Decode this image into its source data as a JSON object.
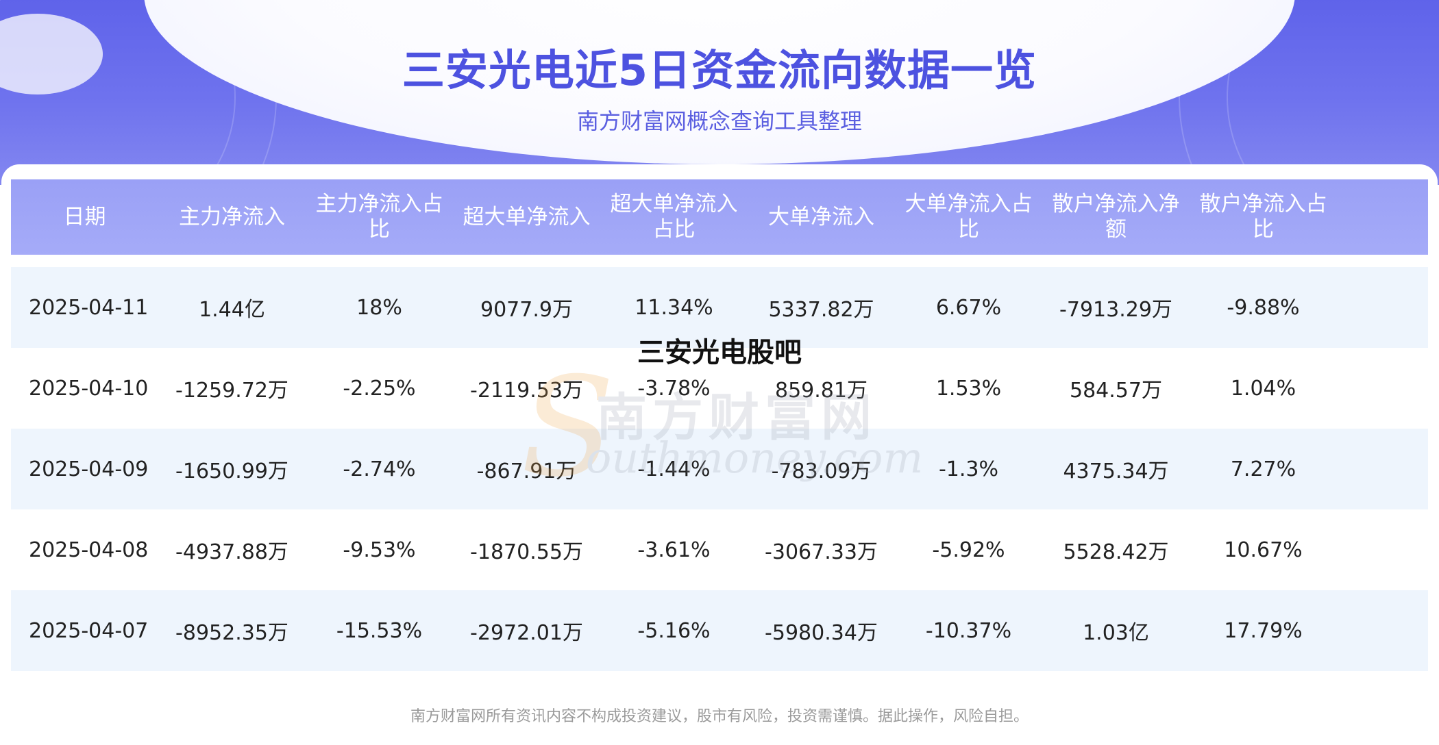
{
  "header": {
    "title": "三安光电近5日资金流向数据一览",
    "subtitle": "南方财富网概念查询工具整理"
  },
  "overlay_title": "三安光电股吧",
  "watermark": {
    "cn": "南方财富网",
    "en": "outhmoney.com"
  },
  "table": {
    "columns": [
      "日期",
      "主力净流入",
      "主力净流入占比",
      "超大单净流入",
      "超大单净流入占比",
      "大单净流入",
      "大单净流入占比",
      "散户净流入净额",
      "散户净流入占比"
    ],
    "rows": [
      [
        "2025-04-11",
        "1.44亿",
        "18%",
        "9077.9万",
        "11.34%",
        "5337.82万",
        "6.67%",
        "-7913.29万",
        "-9.88%"
      ],
      [
        "2025-04-10",
        "-1259.72万",
        "-2.25%",
        "-2119.53万",
        "-3.78%",
        "859.81万",
        "1.53%",
        "584.57万",
        "1.04%"
      ],
      [
        "2025-04-09",
        "-1650.99万",
        "-2.74%",
        "-867.91万",
        "-1.44%",
        "-783.09万",
        "-1.3%",
        "4375.34万",
        "7.27%"
      ],
      [
        "2025-04-08",
        "-4937.88万",
        "-9.53%",
        "-1870.55万",
        "-3.61%",
        "-3067.33万",
        "-5.92%",
        "5528.42万",
        "10.67%"
      ],
      [
        "2025-04-07",
        "-8952.35万",
        "-15.53%",
        "-2972.01万",
        "-5.16%",
        "-5980.34万",
        "-10.37%",
        "1.03亿",
        "17.79%"
      ]
    ]
  },
  "footer": "南方财富网所有资讯内容不构成投资建议，股市有风险，投资需谨慎。据此操作，风险自担。",
  "colors": {
    "brand": "#5f63ea",
    "header_row": "#a5abf8",
    "alt_row": "#eef5fd"
  }
}
